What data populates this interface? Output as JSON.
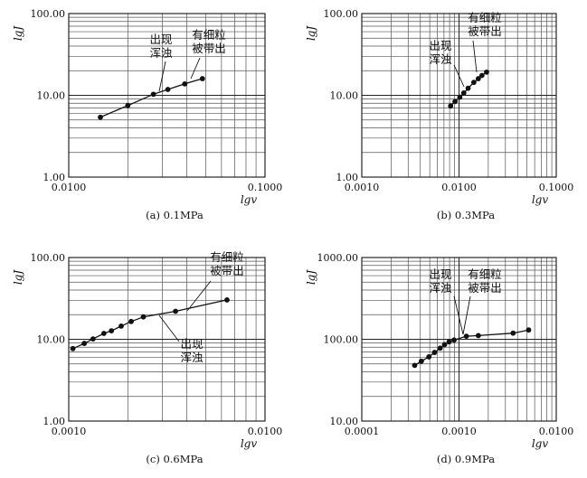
{
  "chart_data": [
    {
      "type": "line",
      "caption": "(a) 0.1MPa",
      "xlabel": "lgv",
      "ylabel": "lgJ",
      "x_scale": "log",
      "y_scale": "log",
      "xlim": [
        0.01,
        0.1
      ],
      "ylim": [
        1,
        100
      ],
      "x_tick_labels": [
        "0.0100",
        "0.1000"
      ],
      "y_tick_labels": [
        "1.00",
        "10.00",
        "100.00"
      ],
      "grid": true,
      "series": [
        {
          "x": [
            0.0145,
            0.02,
            0.027,
            0.032,
            0.039,
            0.048
          ],
          "y": [
            5.4,
            7.5,
            10.3,
            11.8,
            13.8,
            16.0
          ]
        }
      ],
      "annotations": [
        {
          "text": [
            "出现",
            "浑浊"
          ],
          "x": 0.027,
          "y": 10.3
        },
        {
          "text": [
            "有细粒",
            "被带出"
          ],
          "x": 0.039,
          "y": 13.8
        }
      ]
    },
    {
      "type": "line",
      "caption": "(b) 0.3MPa",
      "xlabel": "lgv",
      "ylabel": "lgJ",
      "x_scale": "log",
      "y_scale": "log",
      "xlim": [
        0.001,
        0.1
      ],
      "ylim": [
        1,
        100
      ],
      "x_tick_labels": [
        "0.0010",
        "0.0100",
        "0.1000"
      ],
      "y_tick_labels": [
        "1.00",
        "10.00",
        "100.00"
      ],
      "grid": true,
      "series": [
        {
          "x": [
            0.0082,
            0.0091,
            0.0102,
            0.0112,
            0.0124,
            0.0142,
            0.0158,
            0.0172,
            0.0192
          ],
          "y": [
            7.4,
            8.4,
            9.5,
            10.7,
            12.2,
            14.4,
            16.0,
            17.5,
            19.2
          ]
        }
      ],
      "annotations": [
        {
          "text": [
            "出现",
            "浑浊"
          ],
          "x": 0.0125,
          "y": 12.2
        },
        {
          "text": [
            "有细粒",
            "被带出"
          ],
          "x": 0.0165,
          "y": 16.5
        }
      ]
    },
    {
      "type": "line",
      "caption": "(c) 0.6MPa",
      "xlabel": "lgv",
      "ylabel": "lgJ",
      "x_scale": "log",
      "y_scale": "log",
      "xlim": [
        0.001,
        0.01
      ],
      "ylim": [
        1,
        100
      ],
      "x_tick_labels": [
        "0.0010",
        "0.0100"
      ],
      "y_tick_labels": [
        "1.00",
        "10.00",
        "100.00"
      ],
      "grid": true,
      "series": [
        {
          "x": [
            0.00105,
            0.0012,
            0.00133,
            0.00151,
            0.00165,
            0.00185,
            0.00208,
            0.0024,
            0.0035,
            0.0064
          ],
          "y": [
            7.7,
            8.9,
            10.1,
            11.8,
            12.7,
            14.5,
            16.5,
            18.8,
            22.0,
            30.3
          ]
        }
      ],
      "annotations": [
        {
          "text": [
            "出现",
            "浑浊"
          ],
          "x": 0.0024,
          "y": 18.8
        },
        {
          "text": [
            "有细粒",
            "被带出"
          ],
          "x": 0.0035,
          "y": 22.0
        }
      ]
    },
    {
      "type": "line",
      "caption": "(d) 0.9MPa",
      "xlabel": "lgv",
      "ylabel": "lgJ",
      "x_scale": "log",
      "y_scale": "log",
      "xlim": [
        0.0001,
        0.01
      ],
      "ylim": [
        10,
        1000
      ],
      "x_tick_labels": [
        "0.0001",
        "0.0010",
        "0.0100"
      ],
      "y_tick_labels": [
        "10.00",
        "100.00",
        "1000.00"
      ],
      "grid": true,
      "series": [
        {
          "x": [
            0.00035,
            0.00041,
            0.00049,
            0.00056,
            0.00064,
            0.00071,
            0.00079,
            0.00089,
            0.00119,
            0.00158,
            0.0036,
            0.0052
          ],
          "y": [
            48,
            54,
            61,
            69,
            78,
            86,
            93,
            98,
            109,
            111,
            119,
            130
          ]
        }
      ],
      "annotations": [
        {
          "text": [
            "出现",
            "浑浊"
          ],
          "x": 0.00119,
          "y": 109
        },
        {
          "text": [
            "有细粒",
            "被带出"
          ],
          "x": 0.00119,
          "y": 109
        }
      ]
    }
  ]
}
